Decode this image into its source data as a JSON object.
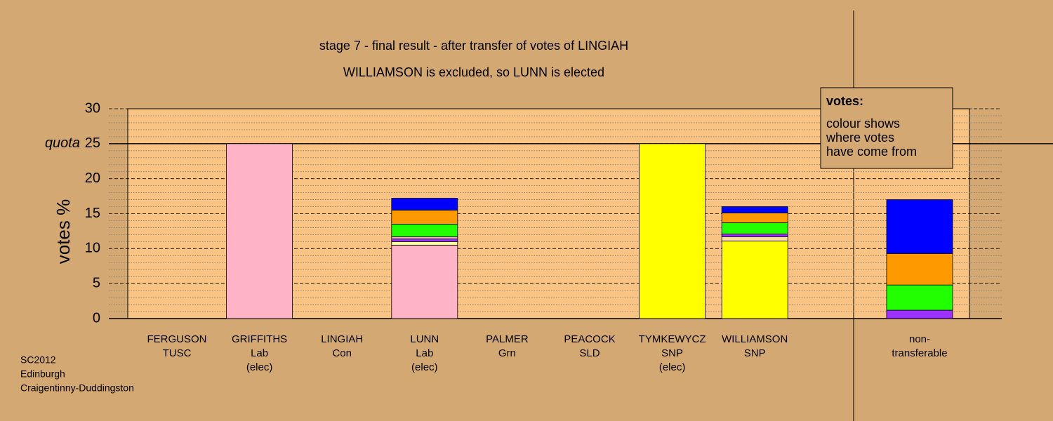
{
  "chart_data": {
    "type": "stacked-bar",
    "title": "stage 7 - final result - after transfer of votes of LINGIAH",
    "subtitle": "WILLIAMSON is excluded, so LUNN is elected",
    "y_label": "votes %",
    "ylim": [
      0,
      30
    ],
    "yticks": [
      0,
      5,
      10,
      15,
      20,
      {
        "value": 25,
        "label": "25"
      },
      30
    ],
    "quota": {
      "value": 25,
      "label": "quota"
    },
    "categories": [
      [
        "FERGUSON",
        "TUSC"
      ],
      [
        "GRIFFITHS",
        "Lab",
        "(elec)"
      ],
      [
        "LINGIAH",
        "Con"
      ],
      [
        "LUNN",
        "Lab",
        "(elec)"
      ],
      [
        "PALMER",
        "Grn"
      ],
      [
        "PEACOCK",
        "SLD"
      ],
      [
        "TYMKEWYCZ",
        "SNP",
        "(elec)"
      ],
      [
        "WILLIAMSON",
        "SNP"
      ],
      [
        "non-",
        "transferable"
      ]
    ],
    "bars": [
      [],
      [
        {
          "color": "#ffb3c6",
          "value": 25
        }
      ],
      [],
      [
        {
          "color": "#ffb3c6",
          "value": 10.5
        },
        {
          "color": "#ffff99",
          "value": 0.5
        },
        {
          "color": "#9b30ff",
          "value": 0.4
        },
        {
          "color": "#ffb3c6",
          "value": 0.3
        },
        {
          "color": "#22ff00",
          "value": 1.8
        },
        {
          "color": "#ff9900",
          "value": 2.0
        },
        {
          "color": "#0000ff",
          "value": 1.7
        }
      ],
      [],
      [],
      [
        {
          "color": "#ffff00",
          "value": 25
        }
      ],
      [
        {
          "color": "#ffff00",
          "value": 11.1
        },
        {
          "color": "#ffe0a0",
          "value": 0.6
        },
        {
          "color": "#9b30ff",
          "value": 0.4
        },
        {
          "color": "#22ff00",
          "value": 1.6
        },
        {
          "color": "#ff9900",
          "value": 1.4
        },
        {
          "color": "#0000ff",
          "value": 0.9
        }
      ],
      [
        {
          "color": "#9b30ff",
          "value": 1.2
        },
        {
          "color": "#22ff00",
          "value": 3.6
        },
        {
          "color": "#ff9900",
          "value": 4.5
        },
        {
          "color": "#0000ff",
          "value": 7.7
        }
      ]
    ],
    "legend": {
      "title": "votes:",
      "lines": [
        "colour shows",
        "where votes",
        "have come from"
      ]
    },
    "footnote": [
      "SC2012",
      "Edinburgh",
      "Craigentinny-Duddingston"
    ]
  }
}
